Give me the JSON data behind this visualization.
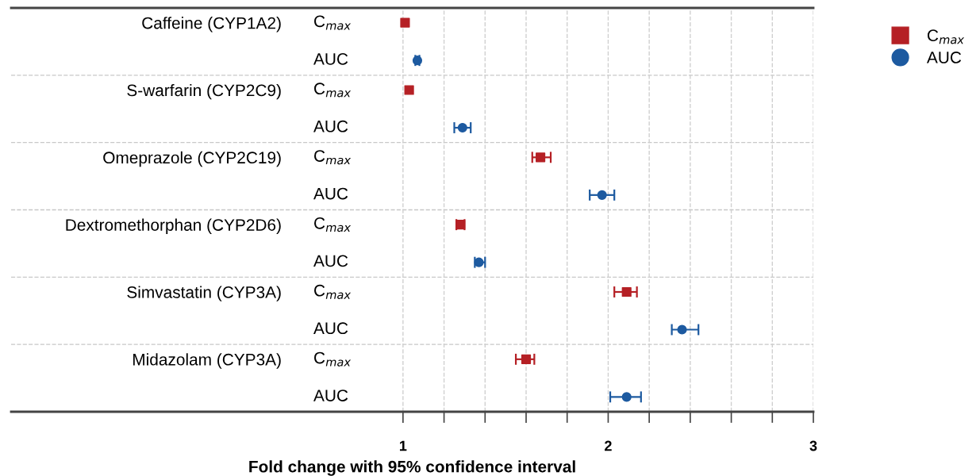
{
  "chart_data": {
    "type": "scatter",
    "orientation": "horizontal",
    "xlabel": "Fold change with 95% confidence interval",
    "categories": [
      "Caffeine (CYP1A2)",
      "S-warfarin (CYP2C9)",
      "Omeprazole (CYP2C19)",
      "Dextromethorphan (CYP2D6)",
      "Simvastatin (CYP3A)",
      "Midazolam (CYP3A)"
    ],
    "series": [
      {
        "name": "C$_{max}$",
        "color": "#b52025",
        "marker": "square",
        "values": [
          1.01,
          1.03,
          1.67,
          1.28,
          2.09,
          1.6
        ],
        "errors": [
          null,
          null,
          [
            1.63,
            1.72
          ],
          [
            1.26,
            1.3
          ],
          [
            2.03,
            2.14
          ],
          [
            1.55,
            1.64
          ]
        ]
      },
      {
        "name": "AUC",
        "color": "#1d5aa0",
        "marker": "circle",
        "values": [
          1.07,
          1.29,
          1.97,
          1.37,
          2.36,
          2.09
        ],
        "errors": [
          [
            1.06,
            1.08
          ],
          [
            1.25,
            1.33
          ],
          [
            1.91,
            2.03
          ],
          [
            1.35,
            1.4
          ],
          [
            2.31,
            2.44
          ],
          [
            2.01,
            2.16
          ]
        ]
      }
    ],
    "xlim": [
      -0.91,
      3
    ],
    "xticks": [
      1,
      {
        "value": 1.2,
        "label": null
      },
      {
        "value": 1.4,
        "label": null
      },
      {
        "value": 1.6,
        "label": null
      },
      {
        "value": 1.8,
        "label": null
      },
      2,
      {
        "value": 2.2,
        "label": null
      },
      {
        "value": 2.4,
        "label": null
      },
      {
        "value": 2.6,
        "label": null
      },
      {
        "value": 2.8,
        "label": null
      },
      3
    ],
    "grid": "x",
    "legend": "right"
  }
}
